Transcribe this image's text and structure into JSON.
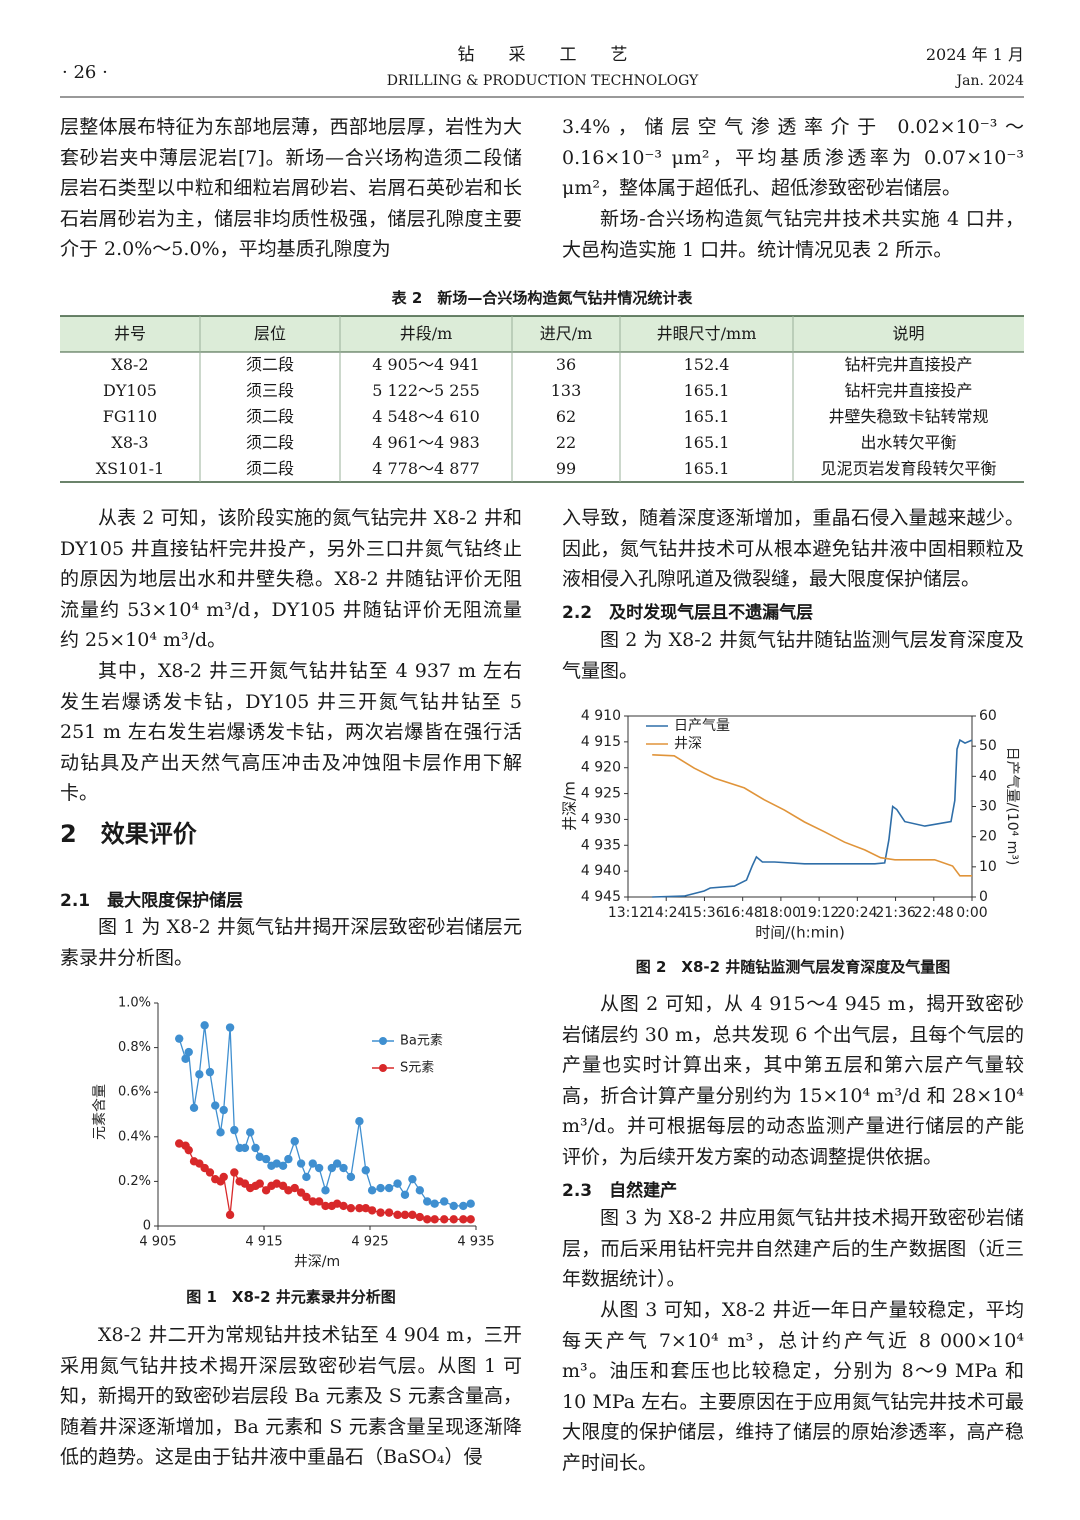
{
  "header": {
    "page": "· 26 ·",
    "journal_cn": "钻　　采　　工　　艺",
    "journal_en": "DRILLING & PRODUCTION TECHNOLOGY",
    "date_cn": "2024 年 1 月",
    "date_en": "Jan. 2024"
  },
  "text": {
    "left_top": "层整体展布特征为东部地层薄，西部地层厚，岩性为大套砂岩夹中薄层泥岩[7]。新场—合兴场构造须二段储层岩石类型以中粒和细粒岩屑砂岩、岩屑石英砂岩和长石岩屑砂岩为主，储层非均质性极强，储层孔隙度主要介于 2.0%～5.0%，平均基质孔隙度为",
    "right_top_1": "3.4%，储层空气渗透率介于 0.02×10⁻³～0.16×10⁻³ μm²，平均基质渗透率为 0.07×10⁻³ μm²，整体属于超低孔、超低渗致密砂岩储层。",
    "right_top_2": "新场-合兴场构造氮气钻完井技术共实施 4 口井，大邑构造实施 1 口井。统计情况见表 2 所示。",
    "left_p1": "从表 2 可知，该阶段实施的氮气钻完井 X8-2 井和 DY105 井直接钻杆完井投产，另外三口井氮气钻终止的原因为地层出水和井壁失稳。X8-2 井随钻评价无阻流量约 53×10⁴ m³/d，DY105 井随钻评价无阻流量约 25×10⁴ m³/d。",
    "left_p2": "其中，X8-2 井三开氮气钻井钻至 4 937 m 左右发生岩爆诱发卡钻，DY105 井三开氮气钻井钻至 5 251 m 左右发生岩爆诱发卡钻，两次岩爆皆在强行活动钻具及产出天然气高压冲击及冲蚀阻卡层作用下解卡。",
    "section_2": "2　效果评价",
    "section_2_1": "2.1　最大限度保护储层",
    "left_p3": "图 1 为 X8-2 井氮气钻井揭开深层致密砂岩储层元素录井分析图。",
    "fig1_caption": "图 1　X8-2 井元素录井分析图",
    "left_p4": "X8-2 井二开为常规钻井技术钻至 4 904 m，三开采用氮气钻井技术揭开深层致密砂岩气层。从图 1 可知，新揭开的致密砂岩层段 Ba 元素及 S 元素含量高，随着井深逐渐增加，Ba 元素和 S 元素含量呈现逐渐降低的趋势。这是由于钻井液中重晶石（BaSO₄）侵",
    "right_p1": "入导致，随着深度逐渐增加，重晶石侵入量越来越少。因此，氮气钻井技术可从根本避免钻井液中固相颗粒及液相侵入孔隙吼道及微裂缝，最大限度保护储层。",
    "section_2_2": "2.2　及时发现气层且不遗漏气层",
    "right_p2": "图 2 为 X8-2 井氮气钻井随钻监测气层发育深度及气量图。",
    "fig2_caption": "图 2　X8-2 井随钻监测气层发育深度及气量图",
    "right_p3": "从图 2 可知，从 4 915～4 945 m，揭开致密砂岩储层约 30 m，总共发现 6 个出气层，且每个气层的产量也实时计算出来，其中第五层和第六层产气量较高，折合计算产量分别约为 15×10⁴ m³/d 和 28×10⁴ m³/d。并可根据每层的动态监测产量进行储层的产能评价，为后续开发方案的动态调整提供依据。",
    "section_2_3": "2.3　自然建产",
    "right_p4": "图 3 为 X8-2 井应用氮气钻井技术揭开致密砂岩储层，而后采用钻杆完井自然建产后的生产数据图（近三年数据统计）。",
    "right_p5": "从图 3 可知，X8-2 井近一年日产量较稳定，平均每天产气 7×10⁴ m³，总计约产气近 8 000×10⁴ m³。油压和套压也比较稳定，分别为 8～9 MPa 和 10 MPa 左右。主要原因在于应用氮气钻完井技术可最大限度的保护储层，维持了储层的原始渗透率，高产稳产时间长。"
  },
  "table": {
    "caption": "表 2　新场—合兴场构造氮气钻井情况统计表",
    "columns": [
      "井号",
      "层位",
      "井段/m",
      "进尺/m",
      "井眼尺寸/mm",
      "说明"
    ],
    "rows": [
      [
        "X8-2",
        "须二段",
        "4 905～4 941",
        "36",
        "152.4",
        "钻杆完井直接投产"
      ],
      [
        "DY105",
        "须三段",
        "5 122～5 255",
        "133",
        "165.1",
        "钻杆完井直接投产"
      ],
      [
        "FG110",
        "须二段",
        "4 548～4 610",
        "62",
        "165.1",
        "井壁失稳致卡钻转常规"
      ],
      [
        "X8-3",
        "须二段",
        "4 961～4 983",
        "22",
        "165.1",
        "出水转欠平衡"
      ],
      [
        "XS101-1",
        "须二段",
        "4 778～4 877",
        "99",
        "165.1",
        "见泥页岩发育段转欠平衡"
      ]
    ]
  },
  "chart_data": [
    {
      "type": "line",
      "x_label": "井深/m",
      "y_label": "元素含量",
      "xlim": [
        4905,
        4935
      ],
      "xticks": [
        {
          "value": 4905,
          "label": "4 905"
        },
        {
          "value": 4915,
          "label": "4 915"
        },
        {
          "value": 4925,
          "label": "4 925"
        },
        {
          "value": 4935,
          "label": "4 935"
        }
      ],
      "ylim": [
        0,
        1.0
      ],
      "yticks": [
        0,
        {
          "value": 0.2,
          "label": "0.2%"
        },
        {
          "value": 0.4,
          "label": "0.4%"
        },
        {
          "value": 0.6,
          "label": "0.6%"
        },
        {
          "value": 0.8,
          "label": "0.8%"
        },
        {
          "value": 1.0,
          "label": "1.0%"
        }
      ],
      "legend": "upper-right",
      "x": [
        4907.0,
        4907.6,
        4907.9,
        4908.4,
        4908.9,
        4909.4,
        4909.9,
        4910.4,
        4910.9,
        4911.2,
        4911.8,
        4912.2,
        4912.7,
        4913.2,
        4913.7,
        4914.2,
        4914.6,
        4915.2,
        4915.7,
        4916.2,
        4916.8,
        4917.3,
        4917.9,
        4918.5,
        4919.0,
        4919.6,
        4920.2,
        4920.8,
        4921.4,
        4921.9,
        4922.5,
        4923.2,
        4924.0,
        4924.6,
        4925.2,
        4926.0,
        4926.8,
        4927.6,
        4928.3,
        4929.0,
        4929.7,
        4930.4,
        4931.1,
        4932.0,
        4932.9,
        4933.8,
        4934.5
      ],
      "series": [
        {
          "name": "Ba元素",
          "color": "#3f8fd0",
          "marker": "circle",
          "values": [
            0.84,
            0.75,
            0.78,
            0.53,
            0.68,
            0.9,
            0.69,
            0.54,
            0.42,
            0.52,
            0.89,
            0.43,
            0.35,
            0.35,
            0.42,
            0.35,
            0.31,
            0.3,
            0.27,
            0.28,
            0.27,
            0.3,
            0.38,
            0.28,
            0.22,
            0.28,
            0.26,
            0.16,
            0.26,
            0.28,
            0.26,
            0.22,
            0.47,
            0.25,
            0.16,
            0.17,
            0.17,
            0.19,
            0.14,
            0.21,
            0.16,
            0.11,
            0.1,
            0.11,
            0.09,
            0.09,
            0.1
          ]
        },
        {
          "name": "S元素",
          "color": "#d8282a",
          "marker": "circle",
          "values": [
            0.37,
            0.36,
            0.34,
            0.29,
            0.28,
            0.26,
            0.24,
            0.21,
            0.2,
            0.22,
            0.05,
            0.24,
            0.2,
            0.19,
            0.17,
            0.18,
            0.19,
            0.16,
            0.18,
            0.19,
            0.18,
            0.16,
            0.17,
            0.15,
            0.13,
            0.11,
            0.11,
            0.09,
            0.09,
            0.1,
            0.09,
            0.08,
            0.08,
            0.08,
            0.07,
            0.06,
            0.06,
            0.05,
            0.05,
            0.05,
            0.04,
            0.03,
            0.03,
            0.03,
            0.03,
            0.03,
            0.03
          ]
        }
      ]
    },
    {
      "type": "line",
      "x_label": "时间/(h:min)",
      "y_label": "井深/m",
      "y2_label": "日产气量/(10⁴ m³)",
      "xlim": [
        13.2,
        24.0
      ],
      "xticks": [
        {
          "value": 13.2,
          "label": "13:12"
        },
        {
          "value": 14.4,
          "label": "14:24"
        },
        {
          "value": 15.6,
          "label": "15:36"
        },
        {
          "value": 16.8,
          "label": "16:48"
        },
        {
          "value": 18.0,
          "label": "18:00"
        },
        {
          "value": 19.2,
          "label": "19:12"
        },
        {
          "value": 20.4,
          "label": "20:24"
        },
        {
          "value": 21.6,
          "label": "21:36"
        },
        {
          "value": 22.8,
          "label": "22:48"
        },
        {
          "value": 24.0,
          "label": "0:00"
        }
      ],
      "ylim": [
        4945,
        4910
      ],
      "yticks": [
        {
          "value": 4910,
          "label": "4 910"
        },
        {
          "value": 4915,
          "label": "4 915"
        },
        {
          "value": 4920,
          "label": "4 920"
        },
        {
          "value": 4925,
          "label": "4 925"
        },
        {
          "value": 4930,
          "label": "4 930"
        },
        {
          "value": 4935,
          "label": "4 935"
        },
        {
          "value": 4940,
          "label": "4 940"
        },
        {
          "value": 4945,
          "label": "4 945"
        }
      ],
      "y2lim": [
        0,
        60
      ],
      "y2ticks": [
        0,
        10,
        20,
        30,
        40,
        50,
        60
      ],
      "legend": "upper-left",
      "series": [
        {
          "name": "日产气量",
          "color": "#2f6ea8",
          "axis": "y2",
          "x": [
            13.96,
            14.96,
            15.59,
            15.78,
            16.54,
            16.92,
            17.1,
            17.23,
            17.42,
            17.8,
            18.74,
            20.0,
            20.95,
            21.26,
            21.39,
            21.51,
            21.64,
            21.89,
            22.52,
            23.34,
            23.46,
            23.53,
            23.62,
            23.78,
            24.0
          ],
          "values": [
            0,
            0.3,
            2,
            3,
            3.6,
            5.6,
            10.3,
            13.3,
            11.6,
            11.6,
            11,
            11,
            11,
            11.3,
            19,
            30,
            29,
            25,
            23.5,
            25,
            32,
            49,
            52,
            51,
            52
          ]
        },
        {
          "name": "井深",
          "color": "#e0943a",
          "x": [
            13.96,
            14.65,
            15.28,
            15.91,
            16.85,
            17.48,
            18.11,
            18.74,
            19.37,
            20.0,
            20.63,
            21.13,
            21.58,
            22.83,
            23.39,
            23.62,
            24.0
          ],
          "values": [
            4917.5,
            4917.7,
            4920.1,
            4922.0,
            4923.9,
            4926.2,
            4928.2,
            4930.5,
            4932.4,
            4934.4,
            4935.9,
            4937.4,
            4937.8,
            4937.8,
            4939.0,
            4940.9,
            4940.9
          ]
        }
      ]
    }
  ]
}
